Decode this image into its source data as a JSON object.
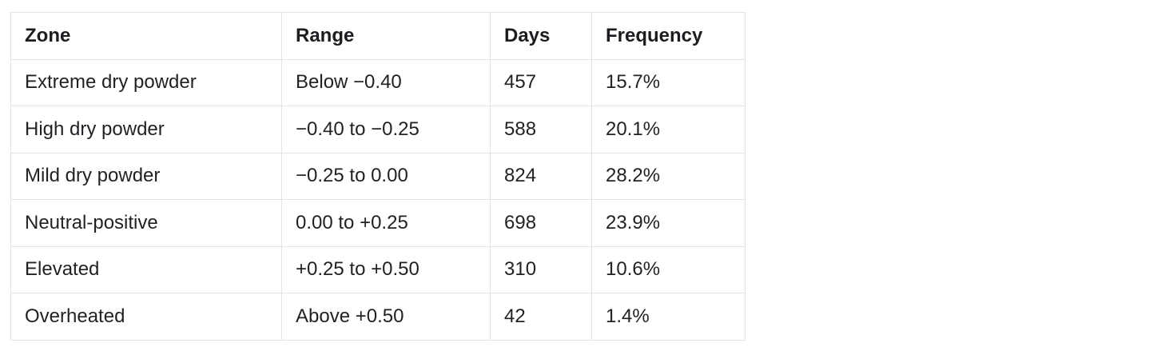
{
  "table": {
    "name": "market-zone-frequency-table",
    "headers": [
      "Zone",
      "Range",
      "Days",
      "Frequency"
    ],
    "rows": [
      {
        "zone": "Extreme dry powder",
        "range": "Below −0.40",
        "days": "457",
        "frequency": "15.7%"
      },
      {
        "zone": "High dry powder",
        "range": "−0.40 to −0.25",
        "days": "588",
        "frequency": "20.1%"
      },
      {
        "zone": "Mild dry powder",
        "range": "−0.25 to 0.00",
        "days": "824",
        "frequency": "28.2%"
      },
      {
        "zone": "Neutral-positive",
        "range": "0.00 to +0.25",
        "days": "698",
        "frequency": "23.9%"
      },
      {
        "zone": "Elevated",
        "range": "+0.25 to +0.50",
        "days": "310",
        "frequency": "10.6%"
      },
      {
        "zone": "Overheated",
        "range": "Above +0.50",
        "days": "42",
        "frequency": "1.4%"
      }
    ]
  },
  "colors": {
    "background": "#ffffff",
    "border": "#e2e3e5",
    "text": "#1f2125"
  }
}
